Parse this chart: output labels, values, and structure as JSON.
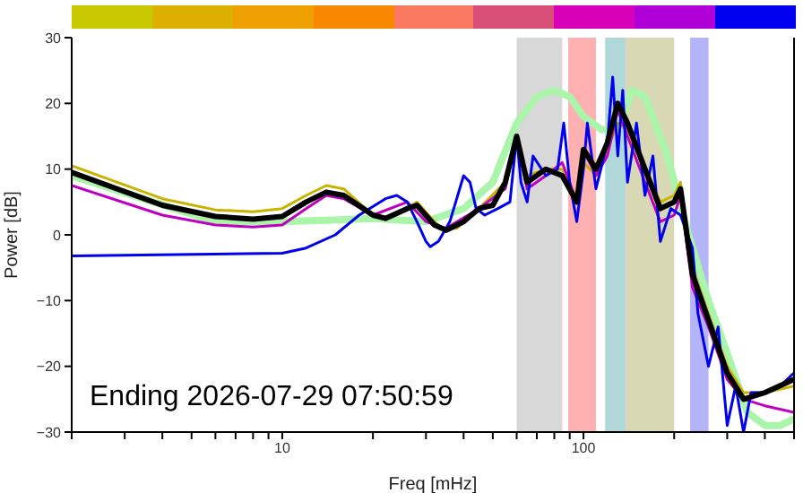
{
  "chart_data": {
    "type": "line",
    "xlabel": "Freq [mHz]",
    "ylabel": "Power [dB]",
    "log": "x",
    "xlim": [
      2,
      500
    ],
    "ylim": [
      -30,
      30
    ],
    "xticks": [
      {
        "value": 2,
        "label": null
      },
      {
        "value": 3,
        "label": null
      },
      {
        "value": 4,
        "label": null
      },
      {
        "value": 5,
        "label": null
      },
      {
        "value": 6,
        "label": null
      },
      {
        "value": 7,
        "label": null
      },
      {
        "value": 8,
        "label": null
      },
      {
        "value": 9,
        "label": null
      },
      10,
      {
        "value": 20,
        "label": null
      },
      {
        "value": 30,
        "label": null
      },
      {
        "value": 40,
        "label": null
      },
      {
        "value": 50,
        "label": null
      },
      {
        "value": 60,
        "label": null
      },
      {
        "value": 70,
        "label": null
      },
      {
        "value": 80,
        "label": null
      },
      {
        "value": 90,
        "label": null
      },
      100,
      {
        "value": 200,
        "label": null
      },
      {
        "value": 300,
        "label": null
      },
      {
        "value": 400,
        "label": null
      },
      {
        "value": 500,
        "label": null
      }
    ],
    "yticks": [
      -30,
      -20,
      -10,
      0,
      10,
      20,
      30
    ],
    "marker": "none",
    "line_style": "solid",
    "bands": [
      {
        "axis": "x",
        "from": 60,
        "to": 85,
        "color": "#d8d8d8"
      },
      {
        "axis": "x",
        "from": 89,
        "to": 110,
        "color": "#ffb0b0"
      },
      {
        "axis": "x",
        "from": 118,
        "to": 138,
        "color": "#b0d8d8"
      },
      {
        "axis": "x",
        "from": 138,
        "to": 200,
        "color": "#d8d8b4"
      },
      {
        "axis": "x",
        "from": 226,
        "to": 260,
        "color": "#b4b4f8"
      }
    ],
    "annotations": [
      "Ending 2026-07-29 07:50:59"
    ],
    "series": [
      {
        "color": "#aaf5aa",
        "x": [
          2,
          6,
          10,
          14,
          20,
          30,
          40,
          50,
          60,
          70,
          80,
          90,
          100,
          115,
          130,
          145,
          160,
          190,
          220,
          260,
          300,
          350,
          400,
          450,
          500
        ],
        "values": [
          9,
          2,
          2,
          2.2,
          2.5,
          2,
          4,
          8,
          17,
          21,
          22,
          21,
          18,
          16,
          16,
          22,
          21,
          12,
          1,
          -10,
          -18,
          -27,
          -29,
          -29,
          -28
        ]
      },
      {
        "color": "#c8b400",
        "x": [
          2,
          4,
          6,
          8,
          10,
          12,
          14,
          16,
          20,
          22,
          26,
          28,
          32,
          34,
          38,
          45,
          55,
          60,
          65,
          75,
          85,
          95,
          100,
          110,
          120,
          130,
          140,
          160,
          180,
          200,
          210,
          230,
          260,
          300,
          340,
          400,
          500
        ],
        "values": [
          10.5,
          5.5,
          3.8,
          3.5,
          4,
          6,
          7.5,
          7,
          3,
          2.5,
          4,
          5,
          2,
          1,
          1,
          4,
          8,
          14,
          9,
          10,
          10,
          5.5,
          11,
          9,
          13,
          17,
          16,
          10,
          5,
          6,
          8,
          -5,
          -12,
          -20,
          -24,
          -24,
          -23
        ]
      },
      {
        "color": "#c000c0",
        "x": [
          2,
          4,
          6,
          8,
          10,
          12,
          14,
          16,
          20,
          26,
          30,
          35,
          45,
          55,
          60,
          65,
          75,
          85,
          95,
          100,
          110,
          120,
          130,
          140,
          160,
          180,
          200,
          210,
          230,
          260,
          300,
          340,
          400,
          500
        ],
        "values": [
          7.5,
          3,
          1.5,
          1.2,
          1.5,
          4,
          6,
          5.5,
          3,
          5,
          2,
          1,
          4,
          7,
          15,
          7,
          9,
          11,
          5,
          13,
          9,
          12,
          19,
          15,
          8,
          2,
          3,
          6,
          -8,
          -14,
          -22,
          -25,
          -26,
          -27
        ]
      },
      {
        "color": "#0000ee",
        "x": [
          2,
          10,
          12,
          15,
          18,
          22,
          24,
          26,
          28,
          30,
          31,
          33,
          36,
          40,
          42,
          44,
          47,
          52,
          57,
          60,
          62,
          65,
          68,
          75,
          82,
          86,
          90,
          95,
          100,
          103,
          110,
          120,
          125,
          130,
          135,
          140,
          150,
          160,
          170,
          180,
          195,
          210,
          230,
          240,
          260,
          280,
          300,
          320,
          340,
          360,
          400,
          450,
          500
        ],
        "values": [
          -3.2,
          -2.8,
          -2,
          0,
          3,
          5.5,
          6,
          5,
          2,
          -1,
          -1.8,
          -1,
          2,
          9,
          8,
          4,
          3,
          4,
          5,
          15,
          8,
          5,
          12,
          9,
          10,
          17,
          8,
          2,
          10,
          17,
          7,
          14,
          24,
          12,
          22,
          8,
          17,
          6,
          12,
          -1,
          4,
          3,
          -2,
          -12,
          -20,
          -14,
          -29,
          -23,
          -30,
          -24,
          -24,
          -23,
          -21
        ]
      },
      {
        "color": "#000000",
        "x": [
          2,
          4,
          6,
          8,
          10,
          12,
          14,
          16,
          20,
          22,
          26,
          28,
          32,
          35,
          40,
          45,
          50,
          55,
          60,
          65,
          75,
          85,
          95,
          100,
          110,
          120,
          130,
          140,
          160,
          180,
          200,
          210,
          230,
          260,
          300,
          340,
          400,
          500
        ],
        "values": [
          9.5,
          4.5,
          2.8,
          2.4,
          2.8,
          5,
          6.5,
          6,
          3,
          2.5,
          4,
          4.5,
          1.5,
          0.7,
          2,
          4,
          4.5,
          8,
          15,
          8,
          10,
          9,
          5,
          13,
          10,
          14,
          20,
          17,
          10,
          4,
          5,
          7,
          -6,
          -13,
          -21,
          -25,
          -24,
          -22
        ]
      }
    ]
  }
}
